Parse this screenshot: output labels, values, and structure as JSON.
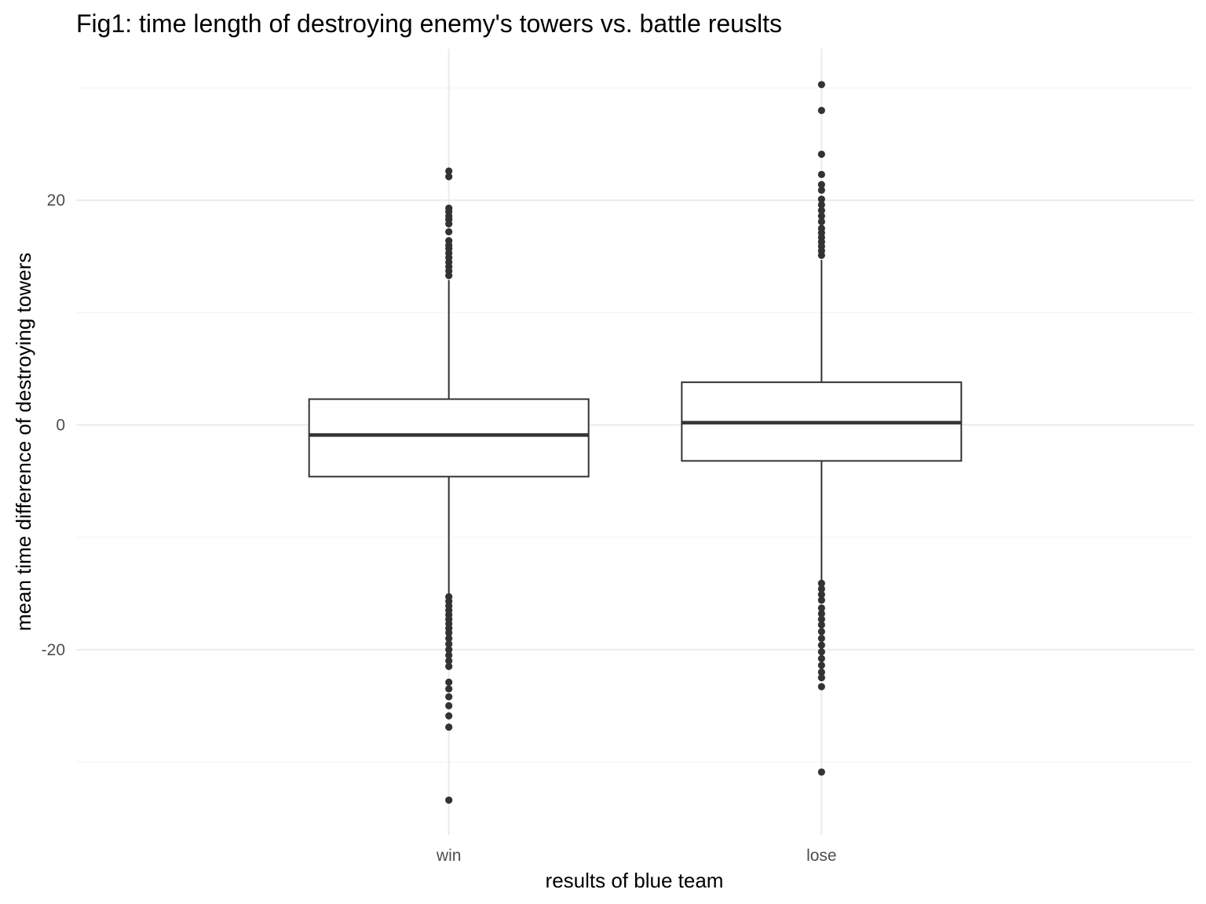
{
  "chart_data": {
    "type": "boxplot",
    "title": "Fig1: time length of destroying enemy's towers vs. battle reuslts",
    "xlabel": "results of blue team",
    "ylabel": "mean time difference of destroying towers",
    "categories": [
      "win",
      "lose"
    ],
    "ylim": [
      -36.5,
      33.5
    ],
    "yticks": [
      -20,
      0,
      20
    ],
    "grid": true,
    "legend": "none",
    "colors": {
      "box_line": "#333333",
      "point": "#333333",
      "grid_major": "#ebebeb",
      "grid_minor": "#f5f5f5",
      "background": "#ffffff"
    },
    "series": [
      {
        "category": "win",
        "q1": -4.6,
        "median": -0.9,
        "q3": 2.3,
        "whisker_low": -15.1,
        "whisker_high": 12.9,
        "outliers": [
          22.6,
          22.1,
          19.3,
          19.0,
          18.6,
          18.3,
          17.9,
          17.2,
          16.4,
          16.0,
          15.7,
          15.3,
          14.9,
          14.5,
          14.1,
          13.7,
          13.3,
          -15.3,
          -15.7,
          -16.1,
          -16.5,
          -16.9,
          -17.3,
          -17.7,
          -18.1,
          -18.5,
          -19.0,
          -19.5,
          -20.0,
          -20.5,
          -21.0,
          -21.5,
          -22.9,
          -23.5,
          -24.2,
          -25.0,
          -25.9,
          -26.9,
          -33.4
        ]
      },
      {
        "category": "lose",
        "q1": -3.2,
        "median": 0.2,
        "q3": 3.8,
        "whisker_low": -13.9,
        "whisker_high": 14.7,
        "outliers": [
          30.3,
          28.0,
          24.1,
          22.3,
          21.4,
          20.9,
          20.1,
          19.6,
          19.1,
          18.6,
          18.1,
          17.5,
          17.1,
          16.7,
          16.3,
          15.9,
          15.5,
          15.1,
          -14.1,
          -14.6,
          -15.1,
          -15.6,
          -16.3,
          -16.8,
          -17.3,
          -17.8,
          -18.4,
          -19.0,
          -19.6,
          -20.2,
          -20.8,
          -21.4,
          -22.0,
          -22.5,
          -23.3,
          -30.9
        ]
      }
    ]
  }
}
